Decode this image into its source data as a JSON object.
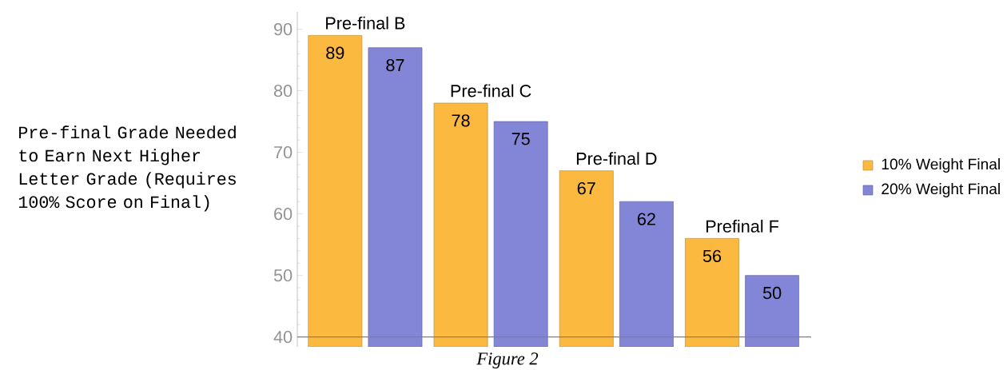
{
  "chart_data": {
    "type": "bar",
    "categories": [
      "Pre-final B",
      "Pre-final C",
      "Pre-final D",
      "Prefinal F"
    ],
    "series": [
      {
        "name": "10% Weight Final",
        "color": "#fcb940",
        "values": [
          89,
          78,
          67,
          56
        ]
      },
      {
        "name": "20% Weight Final",
        "color": "#8386d6",
        "values": [
          87,
          75,
          62,
          50
        ]
      }
    ],
    "ylim": [
      38.4,
      92.8
    ],
    "yticks": [
      40,
      50,
      60,
      70,
      80,
      90
    ],
    "ref_lines": [
      {
        "axis": "y",
        "value": 40,
        "color": "#808080"
      }
    ],
    "data_labels": true,
    "legend": "right",
    "annotations": [
      "Pre-final Grade Needed to Earn Next Higher Letter Grade (Requires 100% Score on Final)",
      "*Figure 2*"
    ]
  }
}
